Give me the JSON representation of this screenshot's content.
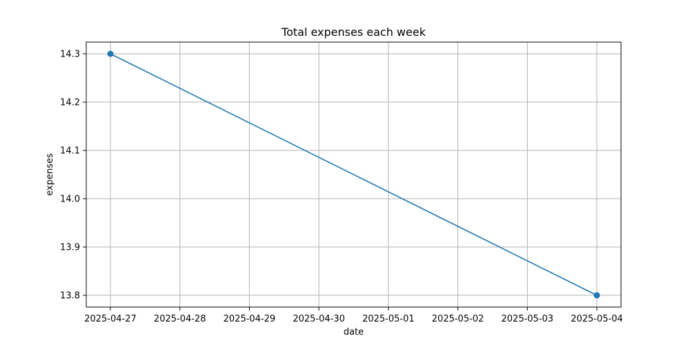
{
  "chart_data": {
    "type": "line",
    "title": "Total expenses each week",
    "xlabel": "date",
    "ylabel": "expenses",
    "x_ticks": [
      "2025-04-27",
      "2025-04-28",
      "2025-04-29",
      "2025-04-30",
      "2025-05-01",
      "2025-05-02",
      "2025-05-03",
      "2025-05-04"
    ],
    "y_ticks": [
      13.8,
      13.9,
      14.0,
      14.1,
      14.2,
      14.3
    ],
    "xlim": [
      "2025-04-27",
      "2025-05-04"
    ],
    "ylim": [
      13.8,
      14.3
    ],
    "grid": true,
    "series": [
      {
        "x": [
          "2025-04-27",
          "2025-05-04"
        ],
        "values": [
          14.3,
          13.8
        ],
        "color": "#1f77b4",
        "marker": "circle"
      }
    ]
  }
}
